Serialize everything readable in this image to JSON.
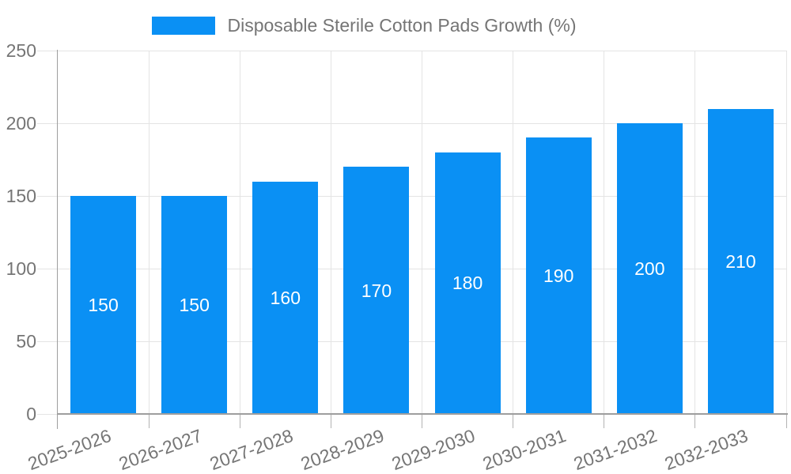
{
  "colors": {
    "bar": "#0a90f4",
    "axis_line": "#9e9e9e",
    "gridline": "#e4e4e4",
    "x_tick": "#b3b3b3",
    "text": "#757575",
    "bar_label": "#ffffff",
    "background": "#ffffff"
  },
  "legend": {
    "label": "Disposable Sterile Cotton Pads Growth (%)"
  },
  "chart_data": {
    "type": "bar",
    "title": "",
    "xlabel": "",
    "ylabel": "",
    "legend_position": "top-center",
    "grid": true,
    "categories": [
      "2025-2026",
      "2026-2027",
      "2027-2028",
      "2028-2029",
      "2029-2030",
      "2030-2031",
      "2031-2032",
      "2032-2033"
    ],
    "series": [
      {
        "name": "Disposable Sterile Cotton Pads Growth (%)",
        "values": [
          150,
          150,
          160,
          170,
          180,
          190,
          200,
          210
        ]
      }
    ],
    "bar_value_labels": [
      "150",
      "150",
      "160",
      "170",
      "180",
      "190",
      "200",
      "210"
    ],
    "ylim": [
      0,
      250
    ],
    "yticks": [
      0,
      50,
      100,
      150,
      200,
      250
    ],
    "x_label_rotation_deg": -20
  }
}
